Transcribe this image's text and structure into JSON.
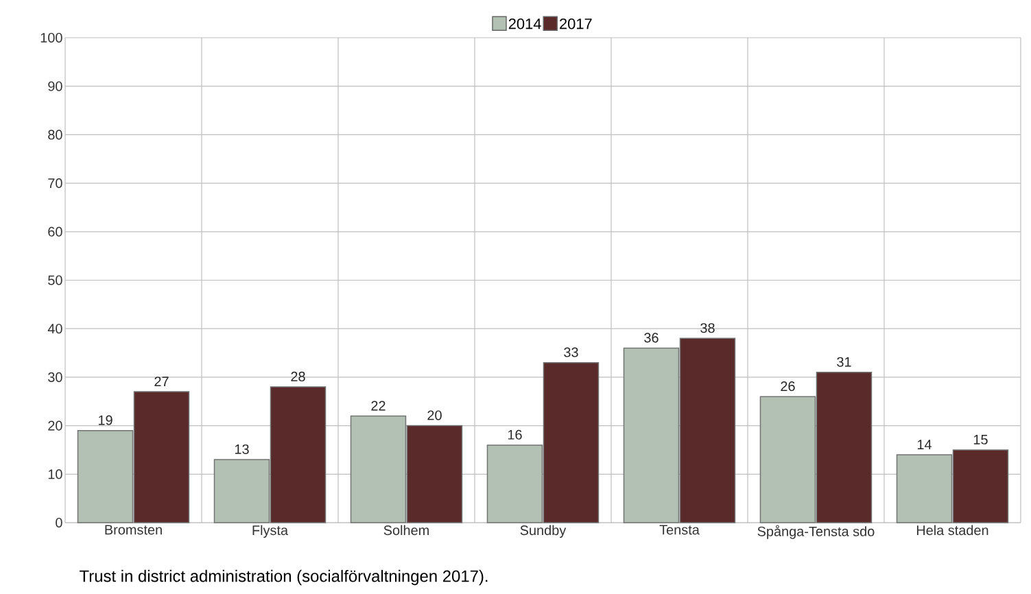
{
  "chart_data": {
    "type": "bar",
    "categories": [
      "Bromsten",
      "Flysta",
      "Solhem",
      "Sundby",
      "Tensta",
      "Spånga-Tensta sdo",
      "Hela staden"
    ],
    "series": [
      {
        "name": "2014",
        "color": "#b3c0b4",
        "values": [
          19,
          13,
          22,
          16,
          36,
          26,
          14
        ]
      },
      {
        "name": "2017",
        "color": "#5a2a2a",
        "values": [
          27,
          28,
          20,
          33,
          38,
          31,
          15
        ]
      }
    ],
    "ylim": [
      0,
      100
    ],
    "yticks": [
      0,
      10,
      20,
      30,
      40,
      50,
      60,
      70,
      80,
      90,
      100
    ],
    "grid": true,
    "legend": "top",
    "data_labels": true,
    "annotations": [
      "Trust in district administration (socialförvaltningen 2017)."
    ]
  }
}
